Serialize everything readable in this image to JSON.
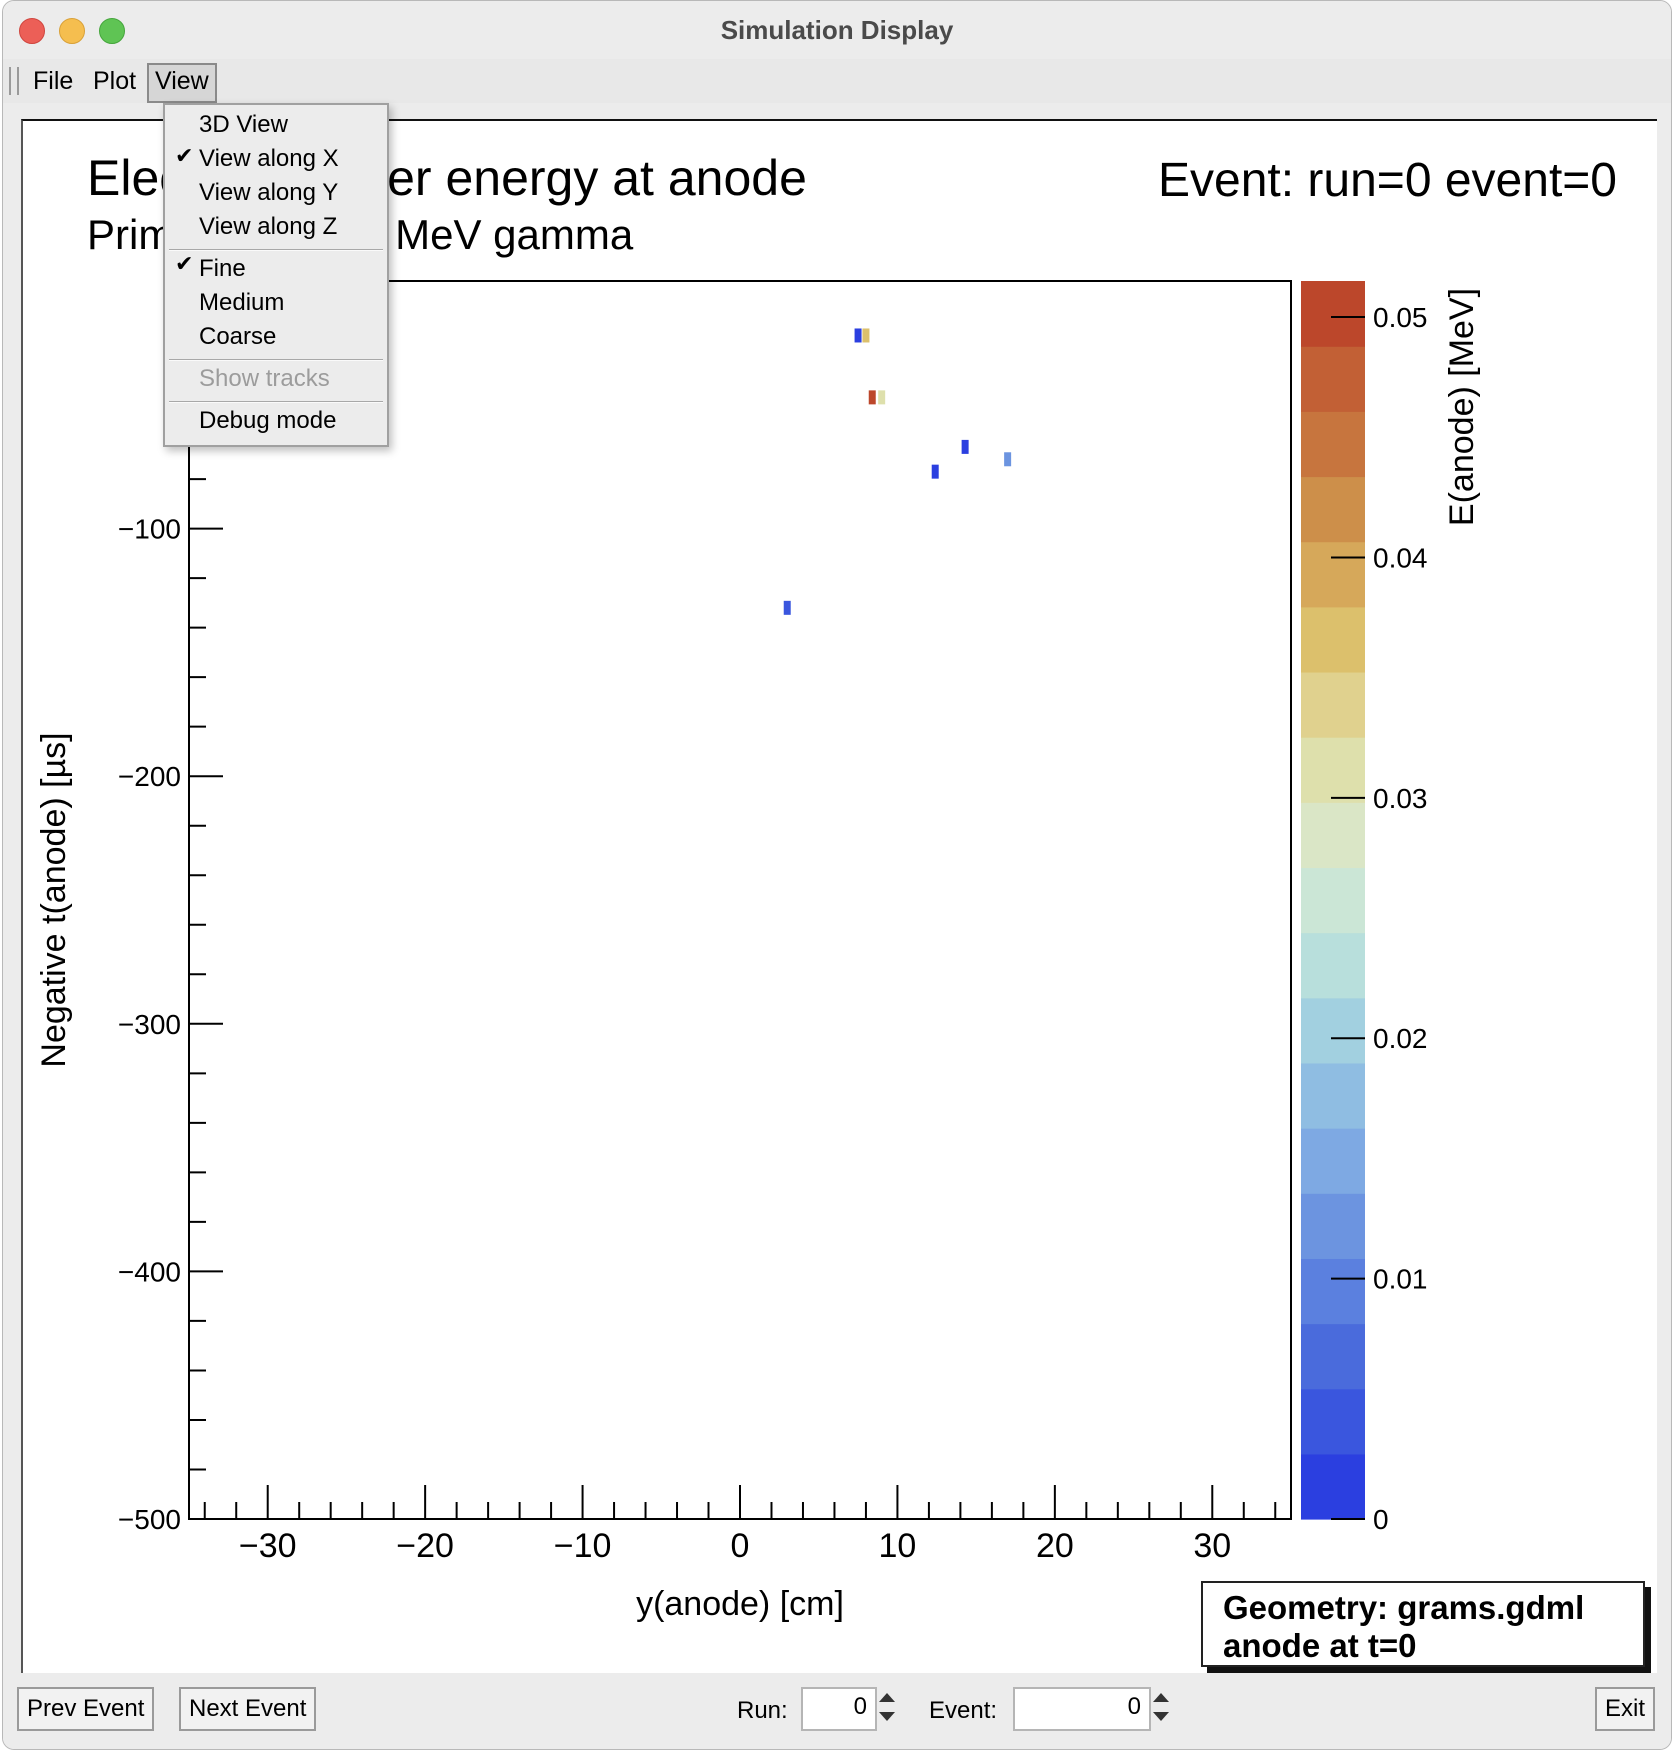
{
  "window": {
    "title": "Simulation Display"
  },
  "menubar": {
    "items": [
      "File",
      "Plot",
      "View"
    ],
    "active": "View"
  },
  "view_menu": {
    "items": [
      {
        "label": "3D View",
        "checked": false,
        "enabled": true
      },
      {
        "label": "View along X",
        "checked": true,
        "enabled": true
      },
      {
        "label": "View along Y",
        "checked": false,
        "enabled": true
      },
      {
        "label": "View along Z",
        "checked": false,
        "enabled": true
      },
      {
        "label": "Fine",
        "checked": true,
        "enabled": true
      },
      {
        "label": "Medium",
        "checked": false,
        "enabled": true
      },
      {
        "label": "Coarse",
        "checked": false,
        "enabled": true
      },
      {
        "label": "Show tracks",
        "checked": false,
        "enabled": false
      },
      {
        "label": "Debug mode",
        "checked": false,
        "enabled": true
      }
    ],
    "check_icon": "checkmark-icon"
  },
  "canvas": {
    "title": "Electron cluster energy at anode",
    "subtitle": "Primary: 1.8085 MeV gamma",
    "event_label": "Event: run=0 event=0",
    "geometry_line1": "Geometry: grams.gdml",
    "geometry_line2": "anode at t=0"
  },
  "chart_data": {
    "type": "heatmap",
    "title": "Electron cluster energy at anode",
    "subtitle": "Primary: 1.8085 MeV gamma",
    "xlabel": "y(anode) [cm]",
    "ylabel": "Negative t(anode) [µs]",
    "zlabel": "E(anode) [MeV]",
    "xlim": [
      -35,
      35
    ],
    "ylim": [
      -500,
      0
    ],
    "zlim": [
      0,
      0.0515
    ],
    "x_ticks": [
      -30,
      -20,
      -10,
      0,
      10,
      20,
      30
    ],
    "x_tick_labels": [
      "−30",
      "−20",
      "−10",
      "0",
      "10",
      "20",
      "30"
    ],
    "y_ticks": [
      -100,
      -200,
      -300,
      -400,
      -500
    ],
    "y_tick_labels": [
      "−100",
      "−200",
      "−300",
      "−400",
      "−500"
    ],
    "z_ticks": [
      0,
      0.01,
      0.02,
      0.03,
      0.04,
      0.05
    ],
    "z_tick_labels": [
      "0",
      "0.01",
      "0.02",
      "0.03",
      "0.04",
      "0.05"
    ],
    "palette": [
      "#2b3fe0",
      "#3a56de",
      "#4a6bdc",
      "#5b80df",
      "#6c94e0",
      "#7ea9e3",
      "#8fbde2",
      "#a2d0e0",
      "#b8dfdc",
      "#cbe6d6",
      "#dae6c6",
      "#dee0ac",
      "#e0d18e",
      "#dcc06c",
      "#d6a85a",
      "#cd8f4a",
      "#c7753e",
      "#c26035",
      "#bc472b"
    ],
    "cells": [
      {
        "y": 7.5,
        "t": -22,
        "e": 0.001
      },
      {
        "y": 8.0,
        "t": -22,
        "e": 0.036
      },
      {
        "y": 8.4,
        "t": -47,
        "e": 0.049
      },
      {
        "y": 9.0,
        "t": -47,
        "e": 0.031
      },
      {
        "y": 14.3,
        "t": -67,
        "e": 0.001
      },
      {
        "y": 12.4,
        "t": -77,
        "e": 0.001
      },
      {
        "y": 17.0,
        "t": -72,
        "e": 0.012
      },
      {
        "y": 3.0,
        "t": -132,
        "e": 0.004
      }
    ],
    "grid": false,
    "legend": "colorbar-right"
  },
  "controls": {
    "prev_label": "Prev Event",
    "next_label": "Next Event",
    "run_label": "Run:",
    "run_value": "0",
    "event_label": "Event:",
    "event_value": "0",
    "exit_label": "Exit"
  }
}
